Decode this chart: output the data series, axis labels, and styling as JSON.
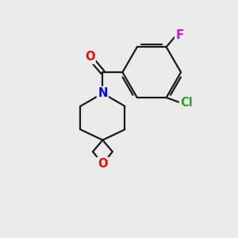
{
  "background_color": "#ebebeb",
  "bond_color": "#1a1a1a",
  "atom_colors": {
    "O_carbonyl": "#ff0000",
    "O_epoxide": "#ff0000",
    "N": "#0000ee",
    "Cl": "#22aa22",
    "F": "#dd00dd"
  },
  "font_size_atoms": 10.5,
  "lw": 1.6
}
